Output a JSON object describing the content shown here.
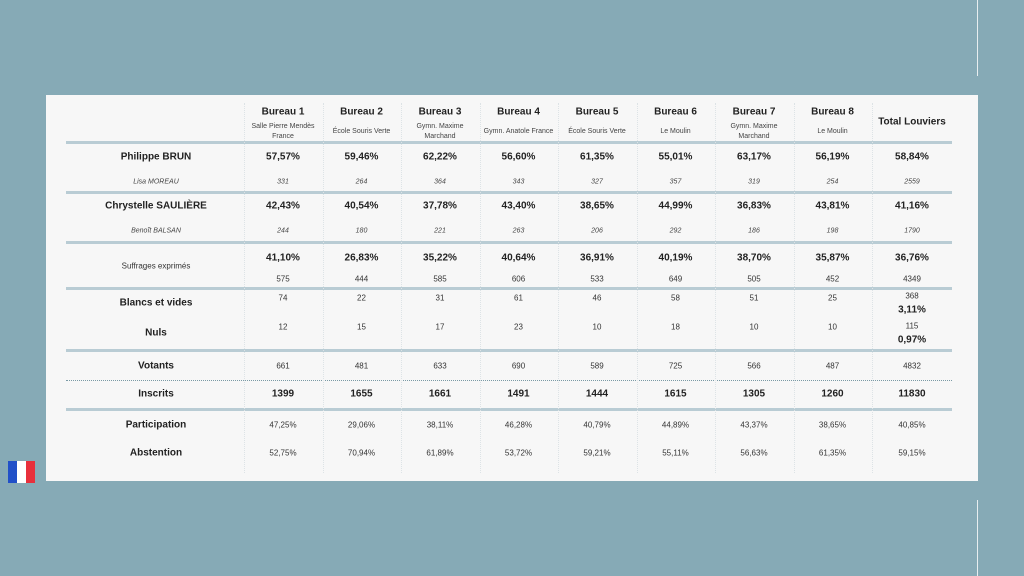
{
  "header": {
    "columns": [
      {
        "title": "Bureau 1",
        "subtitle": "Salle Pierre Mendès France"
      },
      {
        "title": "Bureau 2",
        "subtitle": "École Souris Verte"
      },
      {
        "title": "Bureau 3",
        "subtitle": "Gymn. Maxime Marchand"
      },
      {
        "title": "Bureau 4",
        "subtitle": "Gymn. Anatole France"
      },
      {
        "title": "Bureau 5",
        "subtitle": "École Souris Verte"
      },
      {
        "title": "Bureau 6",
        "subtitle": "Le Moulin"
      },
      {
        "title": "Bureau 7",
        "subtitle": "Gymn. Maxime Marchand"
      },
      {
        "title": "Bureau 8",
        "subtitle": "Le Moulin"
      }
    ],
    "total": "Total Louviers"
  },
  "rows": [
    {
      "label": "Philippe BRUN",
      "values": [
        "57,57%",
        "59,46%",
        "62,22%",
        "56,60%",
        "61,35%",
        "55,01%",
        "63,17%",
        "56,19%",
        "58,84%"
      ]
    },
    {
      "label": "Lisa MOREAU",
      "values": [
        331,
        264,
        364,
        343,
        327,
        357,
        319,
        254,
        2559
      ]
    },
    {
      "label": "Chrystelle SAULIÈRE",
      "values": [
        "42,43%",
        "40,54%",
        "37,78%",
        "43,40%",
        "38,65%",
        "44,99%",
        "36,83%",
        "43,81%",
        "41,16%"
      ]
    },
    {
      "label": "Benoît BALSAN",
      "values": [
        244,
        180,
        221,
        263,
        206,
        292,
        186,
        198,
        1790
      ]
    },
    {
      "label": "Suffrages exprimés",
      "values": [
        "41,10%",
        "26,83%",
        "35,22%",
        "40,64%",
        "36,91%",
        "40,19%",
        "38,70%",
        "35,87%",
        "36,76%"
      ]
    },
    {
      "values": [
        575,
        444,
        585,
        606,
        533,
        649,
        505,
        452,
        4349
      ]
    },
    {
      "label": "Blancs et vides",
      "values": [
        74,
        22,
        31,
        61,
        46,
        58,
        51,
        25,
        368
      ],
      "total_share": "3,11%"
    },
    {
      "label": "Nuls",
      "values": [
        12,
        15,
        17,
        23,
        10,
        18,
        10,
        10,
        115
      ],
      "total_share": "0,97%"
    },
    {
      "label": "Votants",
      "values": [
        661,
        481,
        633,
        690,
        589,
        725,
        566,
        487,
        4832
      ]
    },
    {
      "label": "Inscrits",
      "values": [
        1399,
        1655,
        1661,
        1491,
        1444,
        1615,
        1305,
        1260,
        11830
      ]
    },
    {
      "label": "Participation",
      "values": [
        "47,25%",
        "29,06%",
        "38,11%",
        "46,28%",
        "40,79%",
        "44,89%",
        "43,37%",
        "38,65%",
        "40,85%"
      ]
    },
    {
      "label": "Abstention",
      "values": [
        "52,75%",
        "70,94%",
        "61,89%",
        "53,72%",
        "59,21%",
        "55,11%",
        "56,63%",
        "61,35%",
        "59,15%"
      ]
    }
  ]
}
